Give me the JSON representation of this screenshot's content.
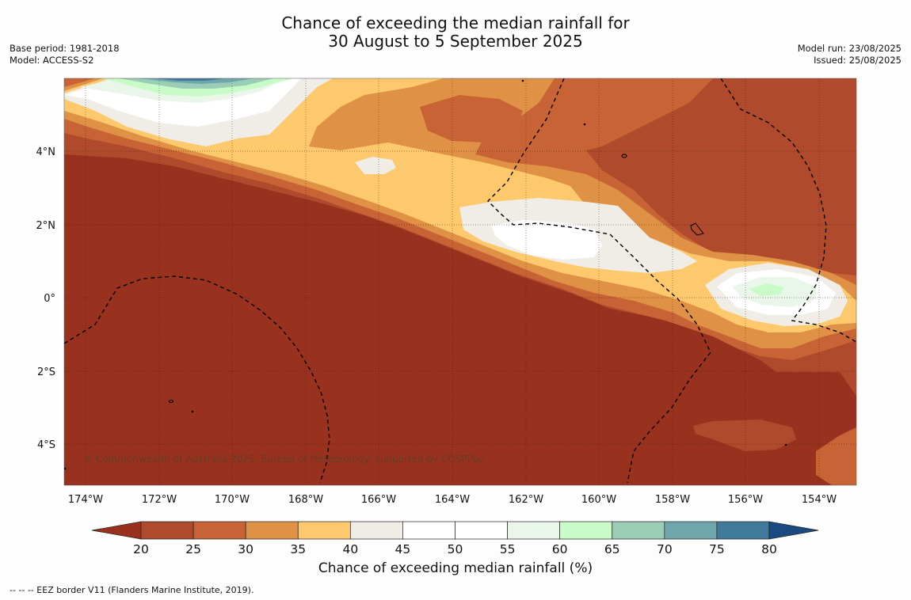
{
  "title": {
    "line1": "Chance of exceeding the median rainfall for",
    "line2": "30 August to 5 September 2025"
  },
  "meta_left": {
    "base_period": "Base period: 1981-2018",
    "model": "Model: ACCESS-S2"
  },
  "meta_right": {
    "model_run": "Model run: 23/08/2025",
    "issued": "Issued: 25/08/2025"
  },
  "map": {
    "lat_labels": [
      "4°N",
      "2°N",
      "0°",
      "2°S",
      "4°S"
    ],
    "lon_labels": [
      "174°W",
      "172°W",
      "170°W",
      "168°W",
      "166°W",
      "164°W",
      "162°W",
      "160°W",
      "158°W",
      "156°W",
      "154°W"
    ],
    "copyright": "© Commonwealth of Australia 2025, Bureau of Meteorology, supported by COSPPac"
  },
  "colorbar": {
    "ticks": [
      "20",
      "25",
      "30",
      "35",
      "40",
      "45",
      "50",
      "55",
      "60",
      "65",
      "70",
      "75",
      "80"
    ],
    "colors": [
      "#98321f",
      "#b04a2c",
      "#c86335",
      "#df9146",
      "#fdc96c",
      "#f0ece6",
      "#ffffff",
      "#ffffff",
      "#eaf6ea",
      "#c9fbc9",
      "#9acdb6",
      "#6fa6ab",
      "#41799d",
      "#1a4a80"
    ],
    "title": "Chance of exceeding median rainfall (%)"
  },
  "footnote": "--  --  -- EEZ border V11 (Flanders Marine Institute, 2019)."
}
